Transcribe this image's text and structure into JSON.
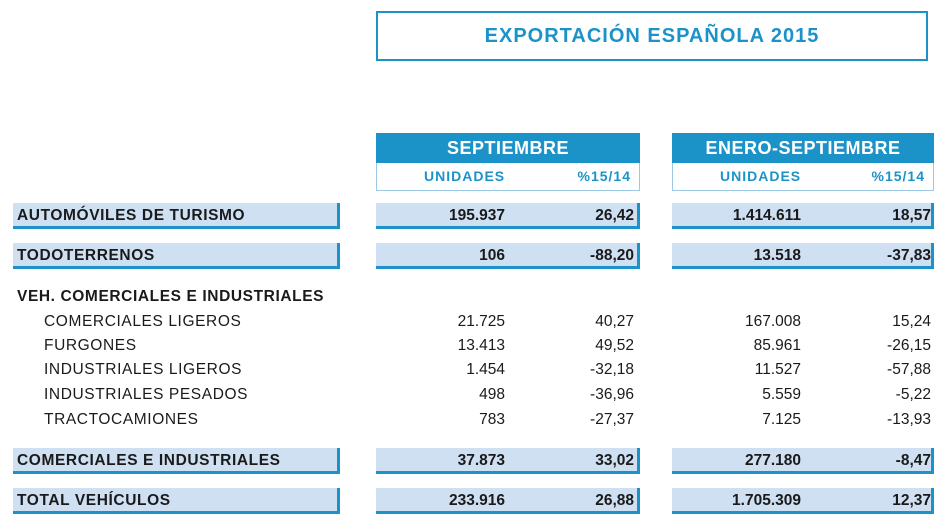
{
  "title": "EXPORTACIÓN ESPAÑOLA 2015",
  "groups": [
    {
      "label": "SEPTIEMBRE",
      "col1": "UNIDADES",
      "col2": "%15/14"
    },
    {
      "label": "ENERO-SEPTIEMBRE",
      "col1": "UNIDADES",
      "col2": "%15/14"
    }
  ],
  "rows": {
    "turismo": {
      "label": "AUTOMÓVILES DE TURISMO",
      "v": [
        "195.937",
        "26,42",
        "1.414.611",
        "18,57"
      ]
    },
    "todoterrenos": {
      "label": "TODOTERRENOS",
      "v": [
        "106",
        "-88,20",
        "13.518",
        "-37,83"
      ]
    },
    "section": {
      "label": "VEH. COMERCIALES E INDUSTRIALES"
    },
    "detail": [
      {
        "label": "COMERCIALES LIGEROS",
        "v": [
          "21.725",
          "40,27",
          "167.008",
          "15,24"
        ]
      },
      {
        "label": "FURGONES",
        "v": [
          "13.413",
          "49,52",
          "85.961",
          "-26,15"
        ]
      },
      {
        "label": "INDUSTRIALES LIGEROS",
        "v": [
          "1.454",
          "-32,18",
          "11.527",
          "-57,88"
        ]
      },
      {
        "label": "INDUSTRIALES PESADOS",
        "v": [
          "498",
          "-36,96",
          "5.559",
          "-5,22"
        ]
      },
      {
        "label": "TRACTOCAMIONES",
        "v": [
          "783",
          "-27,37",
          "7.125",
          "-13,93"
        ]
      }
    ],
    "comerciales": {
      "label": "COMERCIALES E INDUSTRIALES",
      "v": [
        "37.873",
        "33,02",
        "277.180",
        "-8,47"
      ]
    },
    "total": {
      "label": "TOTAL VEHÍCULOS",
      "v": [
        "233.916",
        "26,88",
        "1.705.309",
        "12,37"
      ]
    }
  }
}
